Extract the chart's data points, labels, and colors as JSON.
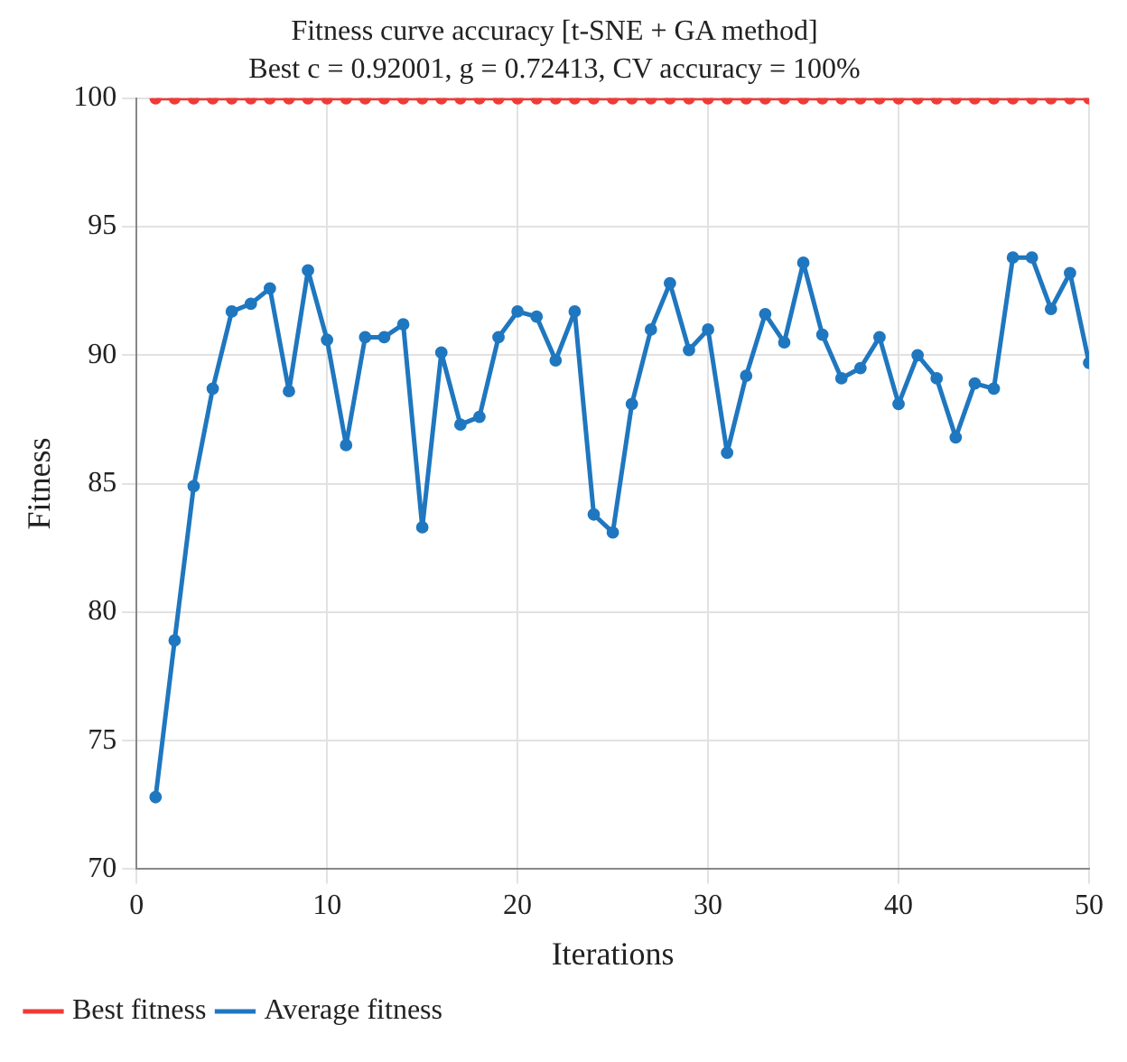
{
  "chart_data": {
    "type": "line",
    "title": "Fitness curve accuracy [t-SNE + GA method]",
    "subtitle": "Best c = 0.92001, g = 0.72413, CV accuracy = 100%",
    "xlabel": "Iterations",
    "ylabel": "Fitness",
    "x": [
      1,
      2,
      3,
      4,
      5,
      6,
      7,
      8,
      9,
      10,
      11,
      12,
      13,
      14,
      15,
      16,
      17,
      18,
      19,
      20,
      21,
      22,
      23,
      24,
      25,
      26,
      27,
      28,
      29,
      30,
      31,
      32,
      33,
      34,
      35,
      36,
      37,
      38,
      39,
      40,
      41,
      42,
      43,
      44,
      45,
      46,
      47,
      48,
      49,
      50
    ],
    "series": [
      {
        "name": "Best fitness",
        "color": "#ee3b36",
        "values": [
          100,
          100,
          100,
          100,
          100,
          100,
          100,
          100,
          100,
          100,
          100,
          100,
          100,
          100,
          100,
          100,
          100,
          100,
          100,
          100,
          100,
          100,
          100,
          100,
          100,
          100,
          100,
          100,
          100,
          100,
          100,
          100,
          100,
          100,
          100,
          100,
          100,
          100,
          100,
          100,
          100,
          100,
          100,
          100,
          100,
          100,
          100,
          100,
          100,
          100
        ]
      },
      {
        "name": "Average fitness",
        "color": "#1f77bf",
        "values": [
          72.8,
          78.9,
          84.9,
          88.7,
          91.7,
          92.0,
          92.6,
          88.6,
          93.3,
          90.6,
          86.5,
          90.7,
          90.7,
          91.2,
          83.3,
          90.1,
          87.3,
          87.6,
          90.7,
          91.7,
          91.5,
          89.8,
          91.7,
          83.8,
          83.1,
          88.1,
          91.0,
          92.8,
          90.2,
          91.0,
          86.2,
          89.2,
          91.6,
          90.5,
          93.6,
          90.8,
          89.1,
          89.5,
          90.7,
          88.1,
          90.0,
          89.1,
          86.8,
          88.9,
          88.7,
          93.8,
          93.8,
          91.8,
          93.2,
          89.7
        ]
      }
    ],
    "xlim": [
      0,
      50
    ],
    "xticks": [
      0,
      10,
      20,
      30,
      40,
      50
    ],
    "ylim": [
      70,
      100
    ],
    "yticks": [
      70,
      75,
      80,
      85,
      90,
      95,
      100
    ],
    "grid": true,
    "legend": "bottom left",
    "marker": "circle",
    "line_style": "solid"
  }
}
